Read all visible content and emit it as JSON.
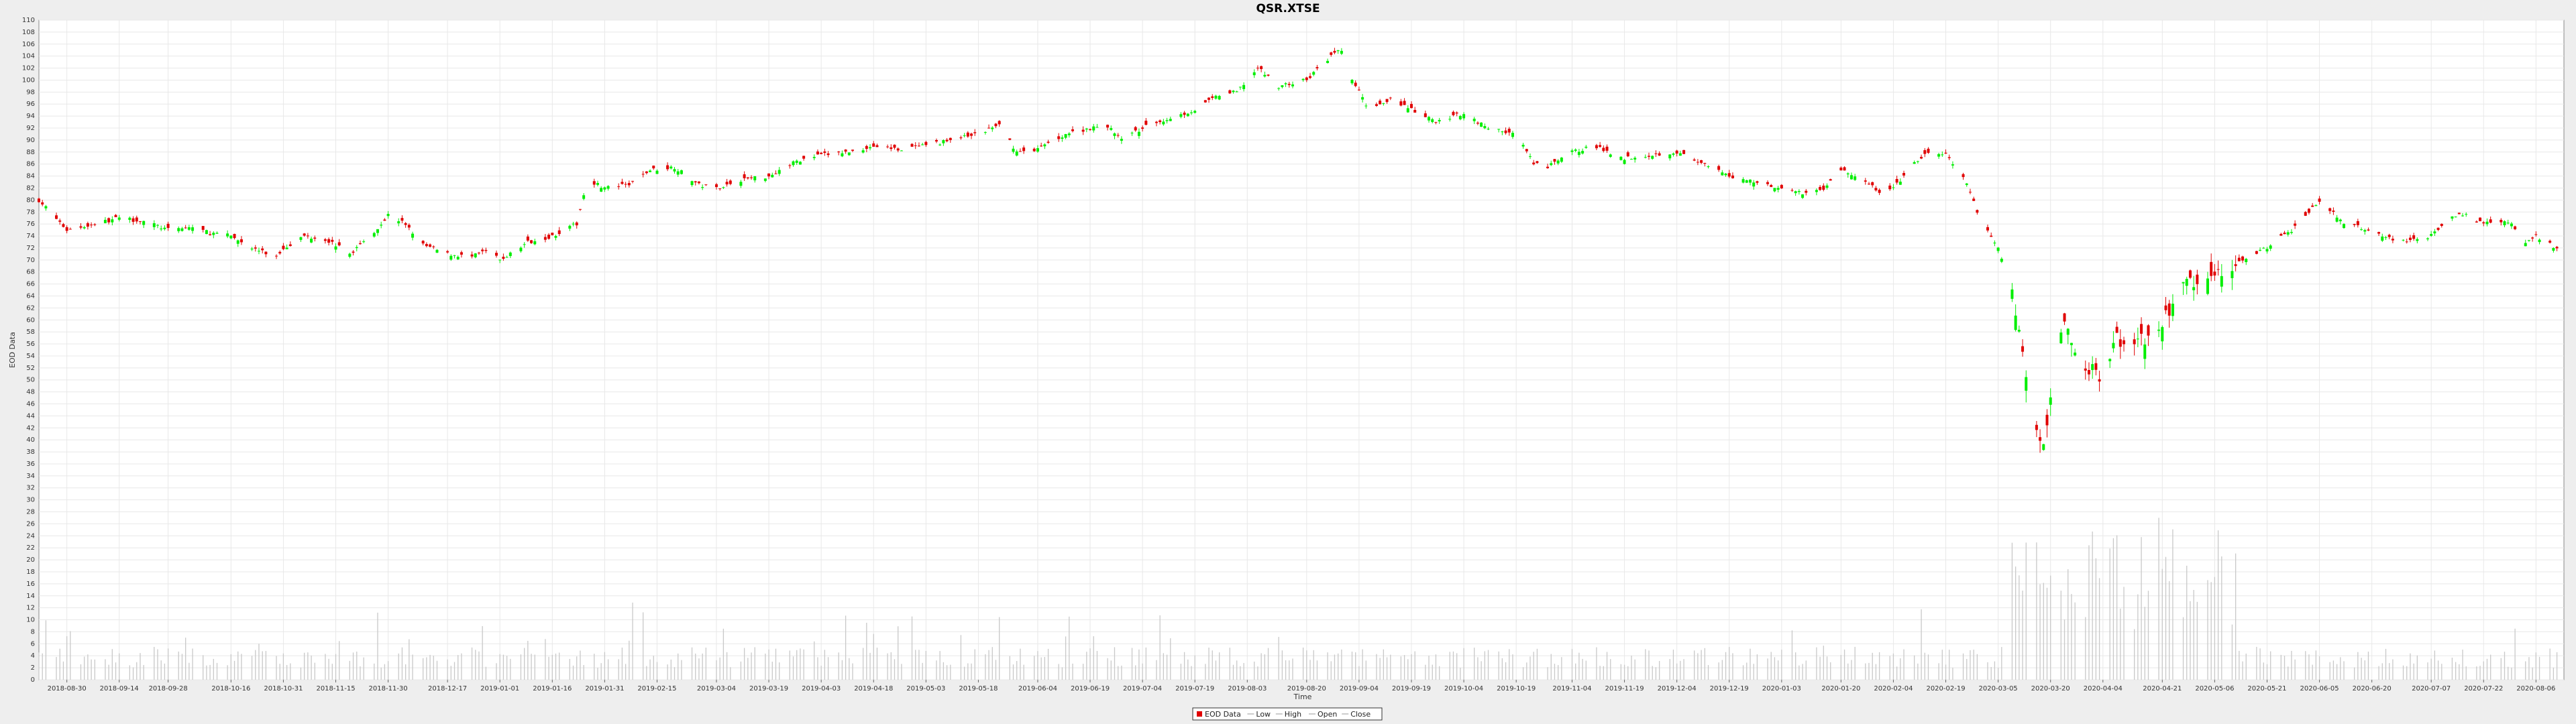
{
  "chart_data": {
    "type": "candlestick",
    "title": "QSR.XTSE",
    "xlabel": "Time",
    "ylabel": "EOD Data",
    "ylim": [
      0,
      110
    ],
    "y_ticks": [
      0,
      2,
      4,
      6,
      8,
      10,
      12,
      14,
      16,
      18,
      20,
      22,
      24,
      26,
      28,
      30,
      32,
      34,
      36,
      38,
      40,
      42,
      44,
      46,
      48,
      50,
      52,
      54,
      56,
      58,
      60,
      62,
      64,
      66,
      68,
      70,
      72,
      74,
      76,
      78,
      80,
      82,
      84,
      86,
      88,
      90,
      92,
      94,
      96,
      98,
      100,
      102,
      104,
      106,
      108,
      110
    ],
    "x_ticks": [
      "2018-08-30",
      "2018-09-14",
      "2018-09-28",
      "2018-10-16",
      "2018-10-31",
      "2018-11-15",
      "2018-11-30",
      "2018-12-17",
      "2019-01-01",
      "2019-01-16",
      "2019-01-31",
      "2019-02-15",
      "2019-03-04",
      "2019-03-19",
      "2019-04-03",
      "2019-04-18",
      "2019-05-03",
      "2019-05-18",
      "2019-06-04",
      "2019-06-19",
      "2019-07-04",
      "2019-07-19",
      "2019-08-03",
      "2019-08-20",
      "2019-09-04",
      "2019-09-19",
      "2019-10-04",
      "2019-10-19",
      "2019-11-04",
      "2019-11-19",
      "2019-12-04",
      "2019-12-19",
      "2020-01-03",
      "2020-01-20",
      "2020-02-04",
      "2020-02-19",
      "2020-03-05",
      "2020-03-20",
      "2020-04-04",
      "2020-04-21",
      "2020-05-06",
      "2020-05-21",
      "2020-06-05",
      "2020-06-20",
      "2020-07-07",
      "2020-07-22",
      "2020-08-06"
    ],
    "close_series": [
      {
        "date": "2018-08-22",
        "close": 80
      },
      {
        "date": "2018-08-30",
        "close": 75
      },
      {
        "date": "2018-09-07",
        "close": 76
      },
      {
        "date": "2018-09-14",
        "close": 77
      },
      {
        "date": "2018-09-21",
        "close": 76.5
      },
      {
        "date": "2018-09-28",
        "close": 75
      },
      {
        "date": "2018-10-05",
        "close": 75.5
      },
      {
        "date": "2018-10-10",
        "close": 74.5
      },
      {
        "date": "2018-10-16",
        "close": 74
      },
      {
        "date": "2018-10-22",
        "close": 72
      },
      {
        "date": "2018-10-29",
        "close": 70.5
      },
      {
        "date": "2018-10-31",
        "close": 72
      },
      {
        "date": "2018-11-06",
        "close": 74
      },
      {
        "date": "2018-11-12",
        "close": 73.5
      },
      {
        "date": "2018-11-15",
        "close": 72.5
      },
      {
        "date": "2018-11-19",
        "close": 71
      },
      {
        "date": "2018-11-23",
        "close": 73
      },
      {
        "date": "2018-11-28",
        "close": 76
      },
      {
        "date": "2018-11-30",
        "close": 77.5
      },
      {
        "date": "2018-12-05",
        "close": 76
      },
      {
        "date": "2018-12-10",
        "close": 72.5
      },
      {
        "date": "2018-12-17",
        "close": 71
      },
      {
        "date": "2018-12-24",
        "close": 70.5
      },
      {
        "date": "2018-12-28",
        "close": 71.5
      },
      {
        "date": "2019-01-01",
        "close": 70
      },
      {
        "date": "2019-01-04",
        "close": 71
      },
      {
        "date": "2019-01-09",
        "close": 73
      },
      {
        "date": "2019-01-16",
        "close": 74
      },
      {
        "date": "2019-01-23",
        "close": 76
      },
      {
        "date": "2019-01-26",
        "close": 83.5
      },
      {
        "date": "2019-01-31",
        "close": 82
      },
      {
        "date": "2019-02-07",
        "close": 82.5
      },
      {
        "date": "2019-02-13",
        "close": 85
      },
      {
        "date": "2019-02-20",
        "close": 85.5
      },
      {
        "date": "2019-02-27",
        "close": 82.5
      },
      {
        "date": "2019-03-04",
        "close": 82
      },
      {
        "date": "2019-03-12",
        "close": 83.5
      },
      {
        "date": "2019-03-19",
        "close": 84
      },
      {
        "date": "2019-03-27",
        "close": 86.5
      },
      {
        "date": "2019-04-03",
        "close": 87.5
      },
      {
        "date": "2019-04-11",
        "close": 88
      },
      {
        "date": "2019-04-18",
        "close": 89
      },
      {
        "date": "2019-04-25",
        "close": 88.5
      },
      {
        "date": "2019-05-03",
        "close": 89
      },
      {
        "date": "2019-05-10",
        "close": 90
      },
      {
        "date": "2019-05-18",
        "close": 91
      },
      {
        "date": "2019-05-24",
        "close": 92.5
      },
      {
        "date": "2019-05-29",
        "close": 88
      },
      {
        "date": "2019-06-04",
        "close": 88.5
      },
      {
        "date": "2019-06-12",
        "close": 91
      },
      {
        "date": "2019-06-19",
        "close": 92
      },
      {
        "date": "2019-06-25",
        "close": 92
      },
      {
        "date": "2019-06-28",
        "close": 90
      },
      {
        "date": "2019-07-04",
        "close": 92
      },
      {
        "date": "2019-07-11",
        "close": 93.5
      },
      {
        "date": "2019-07-19",
        "close": 95
      },
      {
        "date": "2019-07-26",
        "close": 97.5
      },
      {
        "date": "2019-07-31",
        "close": 98
      },
      {
        "date": "2019-08-03",
        "close": 100
      },
      {
        "date": "2019-08-06",
        "close": 102
      },
      {
        "date": "2019-08-12",
        "close": 99
      },
      {
        "date": "2019-08-20",
        "close": 100
      },
      {
        "date": "2019-08-27",
        "close": 104
      },
      {
        "date": "2019-08-30",
        "close": 105
      },
      {
        "date": "2019-09-02",
        "close": 100
      },
      {
        "date": "2019-09-04",
        "close": 98
      },
      {
        "date": "2019-09-07",
        "close": 95
      },
      {
        "date": "2019-09-13",
        "close": 97
      },
      {
        "date": "2019-09-19",
        "close": 95
      },
      {
        "date": "2019-09-26",
        "close": 93
      },
      {
        "date": "2019-10-04",
        "close": 94.5
      },
      {
        "date": "2019-10-11",
        "close": 92
      },
      {
        "date": "2019-10-19",
        "close": 91
      },
      {
        "date": "2019-10-24",
        "close": 86
      },
      {
        "date": "2019-10-28",
        "close": 85.5
      },
      {
        "date": "2019-11-04",
        "close": 88
      },
      {
        "date": "2019-11-10",
        "close": 89
      },
      {
        "date": "2019-11-19",
        "close": 87
      },
      {
        "date": "2019-11-26",
        "close": 87.5
      },
      {
        "date": "2019-12-04",
        "close": 88
      },
      {
        "date": "2019-12-11",
        "close": 86
      },
      {
        "date": "2019-12-19",
        "close": 84
      },
      {
        "date": "2019-12-27",
        "close": 83
      },
      {
        "date": "2020-01-03",
        "close": 82
      },
      {
        "date": "2020-01-09",
        "close": 81
      },
      {
        "date": "2020-01-15",
        "close": 82
      },
      {
        "date": "2020-01-20",
        "close": 85
      },
      {
        "date": "2020-01-27",
        "close": 83
      },
      {
        "date": "2020-02-01",
        "close": 81
      },
      {
        "date": "2020-02-04",
        "close": 82
      },
      {
        "date": "2020-02-10",
        "close": 86
      },
      {
        "date": "2020-02-14",
        "close": 88
      },
      {
        "date": "2020-02-19",
        "close": 87.5
      },
      {
        "date": "2020-02-24",
        "close": 84
      },
      {
        "date": "2020-02-28",
        "close": 78
      },
      {
        "date": "2020-03-05",
        "close": 72
      },
      {
        "date": "2020-03-09",
        "close": 65
      },
      {
        "date": "2020-03-12",
        "close": 55
      },
      {
        "date": "2020-03-16",
        "close": 42
      },
      {
        "date": "2020-03-18",
        "close": 38
      },
      {
        "date": "2020-03-20",
        "close": 48
      },
      {
        "date": "2020-03-24",
        "close": 60
      },
      {
        "date": "2020-03-27",
        "close": 55
      },
      {
        "date": "2020-03-31",
        "close": 52
      },
      {
        "date": "2020-04-04",
        "close": 50
      },
      {
        "date": "2020-04-08",
        "close": 57
      },
      {
        "date": "2020-04-14",
        "close": 56
      },
      {
        "date": "2020-04-21",
        "close": 60
      },
      {
        "date": "2020-04-28",
        "close": 66
      },
      {
        "date": "2020-05-06",
        "close": 67
      },
      {
        "date": "2020-05-13",
        "close": 70
      },
      {
        "date": "2020-05-21",
        "close": 72
      },
      {
        "date": "2020-05-28",
        "close": 75
      },
      {
        "date": "2020-06-05",
        "close": 80
      },
      {
        "date": "2020-06-12",
        "close": 76
      },
      {
        "date": "2020-06-20",
        "close": 75
      },
      {
        "date": "2020-06-27",
        "close": 73
      },
      {
        "date": "2020-07-07",
        "close": 74
      },
      {
        "date": "2020-07-15",
        "close": 78
      },
      {
        "date": "2020-07-22",
        "close": 76
      },
      {
        "date": "2020-07-29",
        "close": 76.5
      },
      {
        "date": "2020-08-03",
        "close": 73
      },
      {
        "date": "2020-08-06",
        "close": 74
      },
      {
        "date": "2020-08-12",
        "close": 72
      }
    ],
    "volume_scale_max": 30,
    "legend": [
      "EOD Data",
      "Low",
      "High",
      "Open",
      "Close"
    ],
    "colors": {
      "up": "#00ee00",
      "down": "#e00000",
      "volume": "#c8c8c8",
      "grid": "#e8e8e8"
    },
    "grid": true,
    "legend_position": "bottom-center"
  }
}
